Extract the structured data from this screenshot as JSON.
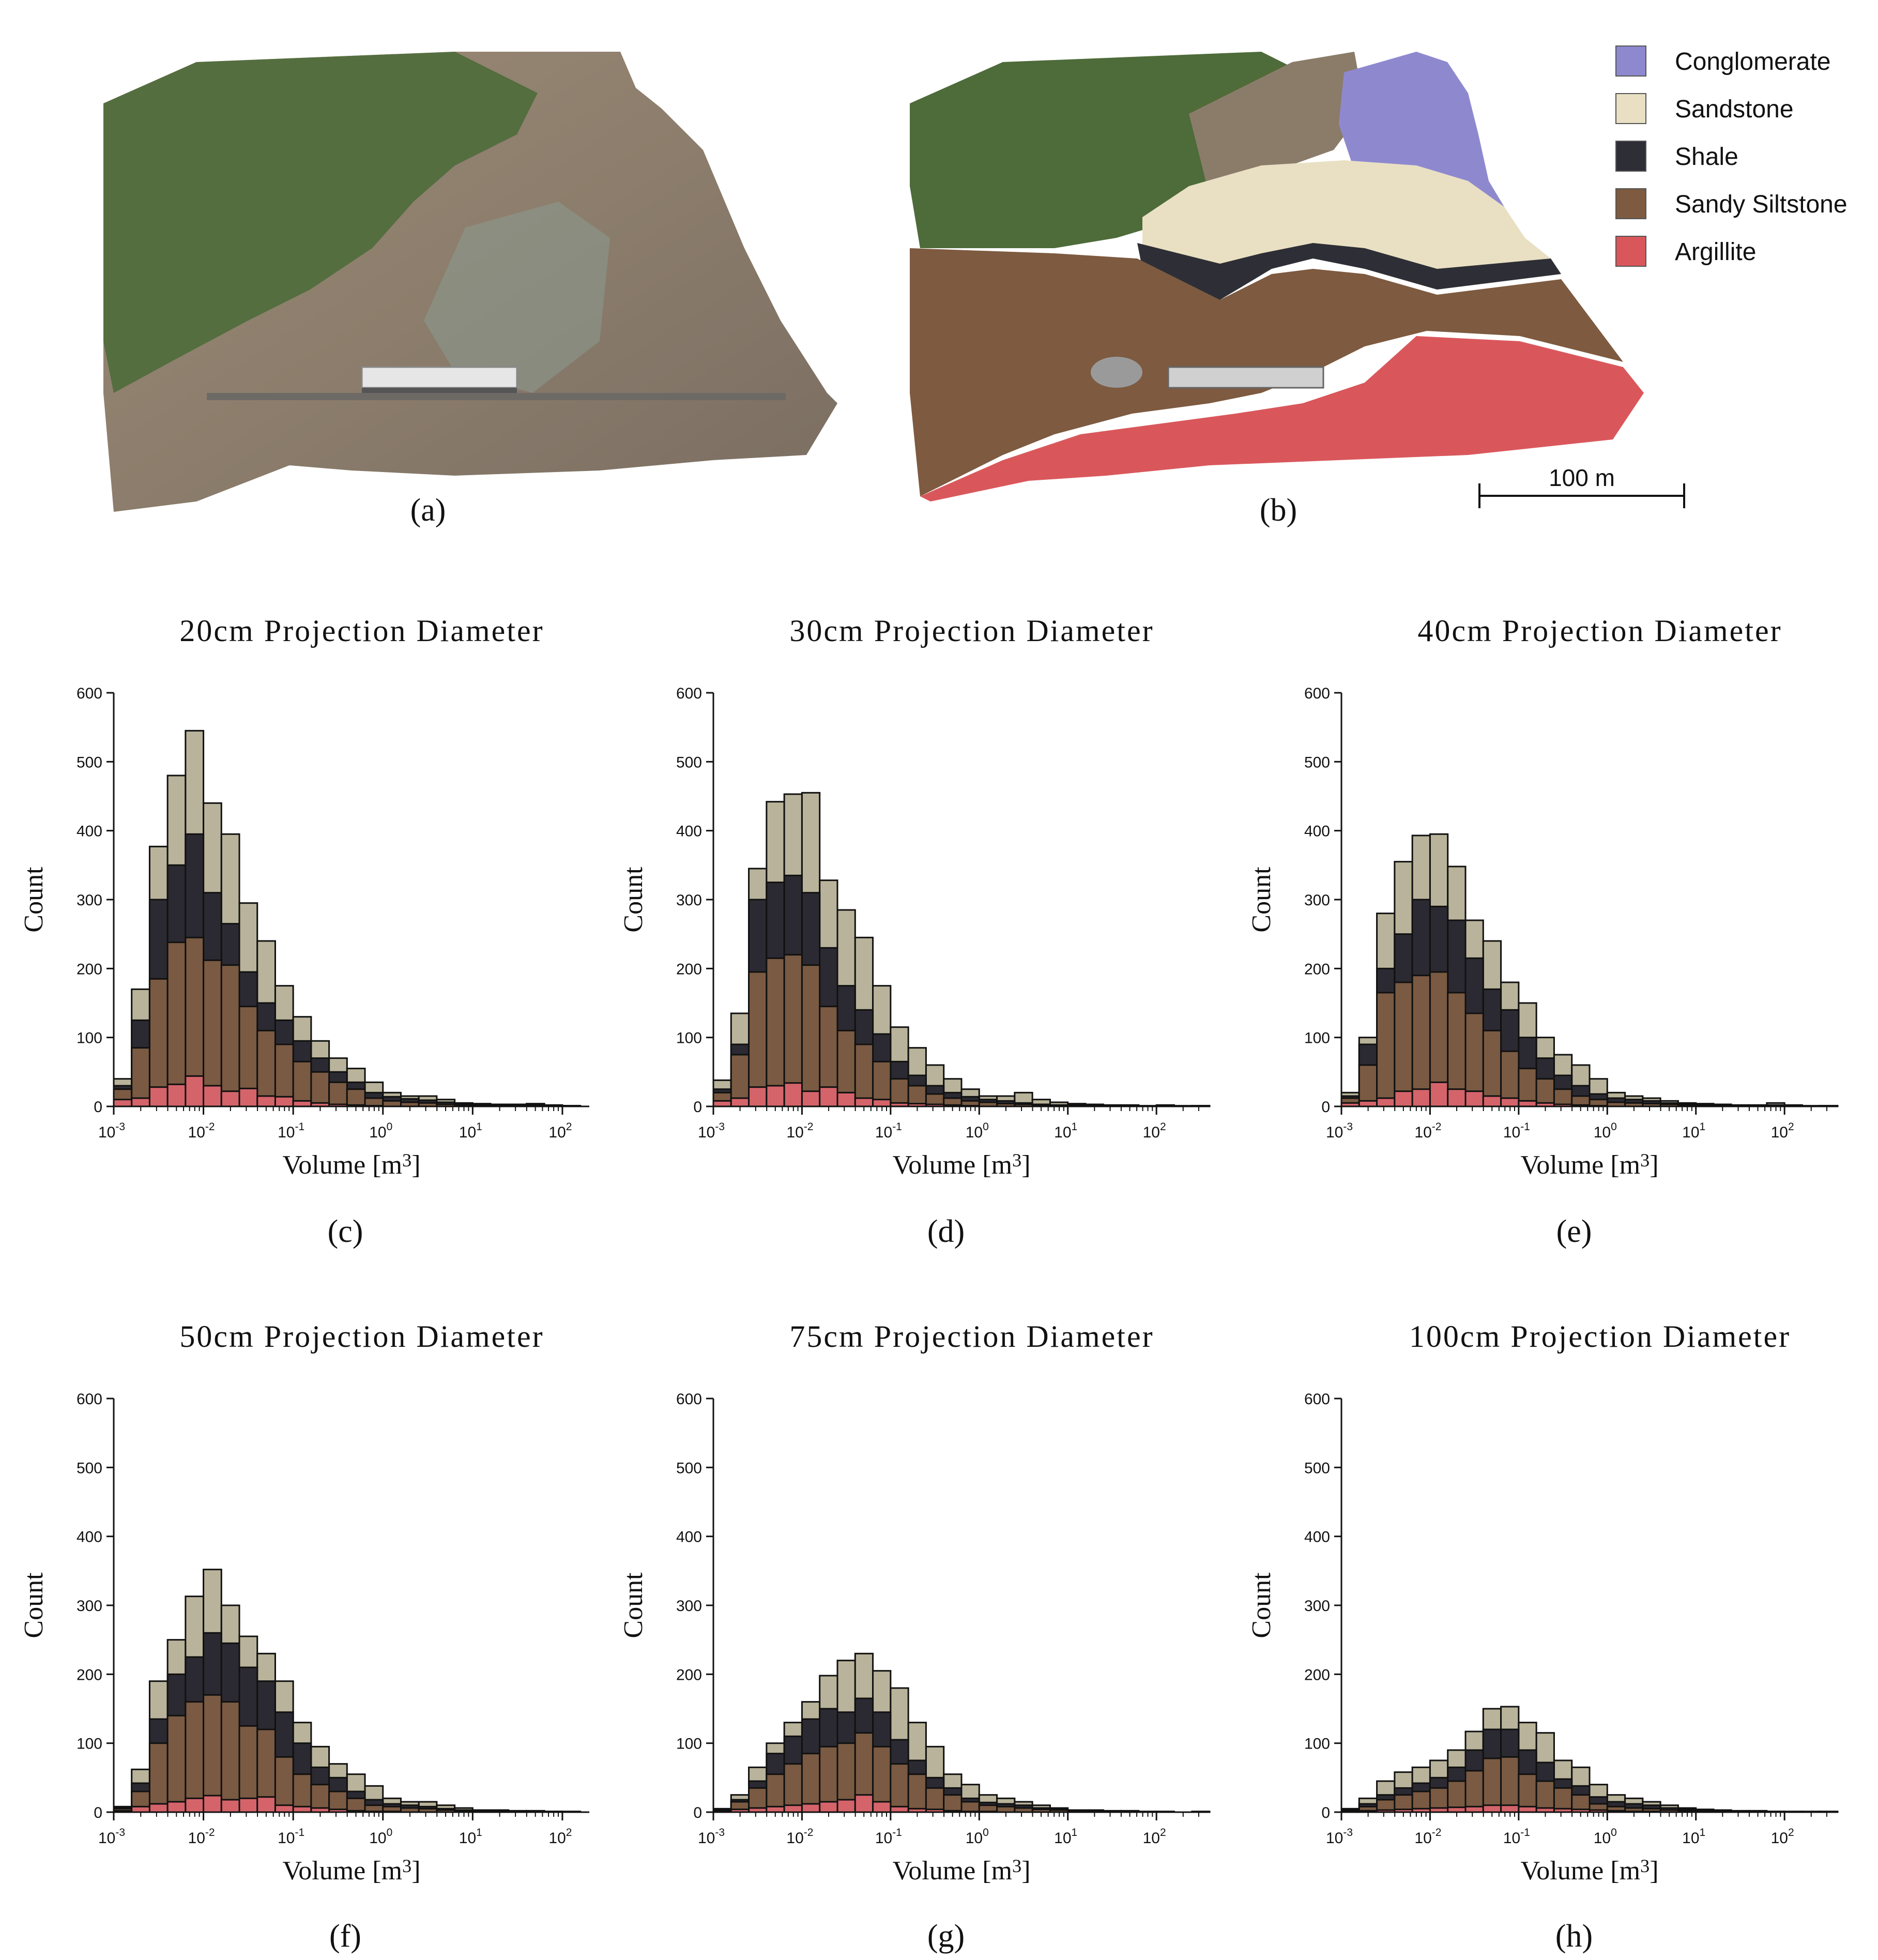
{
  "panels": {
    "a": "(a)",
    "b": "(b)",
    "c": "(c)",
    "d": "(d)",
    "e": "(e)",
    "f": "(f)",
    "g": "(g)",
    "h": "(h)"
  },
  "legend": {
    "items": [
      {
        "label": "Conglomerate",
        "color": "#8e89cf"
      },
      {
        "label": "Sandstone",
        "color": "#e9e0c3"
      },
      {
        "label": "Shale",
        "color": "#2e2e36"
      },
      {
        "label": "Sandy Siltstone",
        "color": "#7d5a40"
      },
      {
        "label": "Argillite",
        "color": "#d9575b"
      }
    ]
  },
  "scale_bar": {
    "label": "100 m"
  },
  "series_colors": {
    "Argillite": "#d4646a",
    "Sandy Siltstone": "#7a5a42",
    "Shale": "#2b2a32",
    "Sandstone": "#b8b39a",
    "Conglomerate": "#7a78c8"
  },
  "chart_data": [
    {
      "type": "bar",
      "title": "20cm  Projection  Diameter",
      "xlabel": "Volume [m3]",
      "ylabel": "Count",
      "xscale": "log",
      "xlim_exp": [
        -3,
        2.3
      ],
      "ylim": [
        0,
        600
      ],
      "yticks": [
        0,
        100,
        200,
        300,
        400,
        500,
        600
      ],
      "xticks": [
        "10-3",
        "10-2",
        "10-1",
        "100",
        "101",
        "102"
      ],
      "bin_width_decades": 0.2,
      "bin_start_exp": -3.0,
      "series": [
        {
          "name": "Argillite",
          "values": [
            10,
            12,
            28,
            32,
            44,
            30,
            22,
            26,
            15,
            14,
            8,
            5,
            3,
            2,
            1,
            0,
            0,
            0,
            0,
            0,
            0,
            0,
            0,
            0,
            0,
            0
          ]
        },
        {
          "name": "Sandy Siltstone",
          "values": [
            25,
            85,
            185,
            238,
            245,
            212,
            205,
            145,
            110,
            90,
            65,
            50,
            35,
            25,
            12,
            8,
            6,
            5,
            3,
            2,
            2,
            1,
            1,
            1,
            0,
            0
          ]
        },
        {
          "name": "Shale",
          "values": [
            30,
            125,
            300,
            350,
            395,
            310,
            265,
            195,
            150,
            125,
            95,
            70,
            50,
            35,
            20,
            14,
            11,
            9,
            6,
            4,
            3,
            2,
            2,
            2,
            1,
            1
          ]
        },
        {
          "name": "Sandstone",
          "values": [
            40,
            170,
            377,
            480,
            545,
            440,
            395,
            295,
            240,
            175,
            130,
            95,
            70,
            55,
            35,
            20,
            15,
            15,
            10,
            5,
            4,
            3,
            3,
            4,
            2,
            1
          ]
        }
      ]
    },
    {
      "type": "bar",
      "title": "30cm  Projection  Diameter",
      "xlabel": "Volume [m3]",
      "ylabel": "Count",
      "xscale": "log",
      "xlim_exp": [
        -3,
        2.6
      ],
      "ylim": [
        0,
        600
      ],
      "yticks": [
        0,
        100,
        200,
        300,
        400,
        500,
        600
      ],
      "xticks": [
        "10-3",
        "10-2",
        "10-1",
        "100",
        "101",
        "102"
      ],
      "bin_width_decades": 0.2,
      "bin_start_exp": -3.0,
      "series": [
        {
          "name": "Argillite",
          "values": [
            8,
            12,
            28,
            30,
            34,
            22,
            28,
            20,
            12,
            10,
            5,
            4,
            3,
            2,
            1,
            0,
            0,
            0,
            0,
            0,
            0,
            0,
            0,
            0,
            0,
            0,
            0,
            0
          ]
        },
        {
          "name": "Sandy Siltstone",
          "values": [
            20,
            75,
            195,
            215,
            220,
            205,
            145,
            110,
            90,
            65,
            40,
            30,
            18,
            12,
            8,
            6,
            4,
            3,
            2,
            1,
            1,
            1,
            0,
            0,
            0,
            0,
            0,
            0
          ]
        },
        {
          "name": "Shale",
          "values": [
            25,
            90,
            300,
            325,
            335,
            310,
            230,
            175,
            140,
            105,
            65,
            45,
            30,
            20,
            14,
            10,
            8,
            5,
            3,
            2,
            2,
            1,
            1,
            1,
            0,
            0,
            0,
            1
          ]
        },
        {
          "name": "Sandstone",
          "values": [
            38,
            135,
            345,
            442,
            453,
            455,
            328,
            285,
            245,
            175,
            115,
            85,
            60,
            40,
            25,
            15,
            15,
            20,
            10,
            6,
            4,
            3,
            2,
            2,
            1,
            2,
            1,
            1
          ]
        }
      ]
    },
    {
      "type": "bar",
      "title": "40cm  Projection  Diameter",
      "xlabel": "Volume [m3]",
      "ylabel": "Count",
      "xscale": "log",
      "xlim_exp": [
        -3,
        2.6
      ],
      "ylim": [
        0,
        600
      ],
      "yticks": [
        0,
        100,
        200,
        300,
        400,
        500,
        600
      ],
      "xticks": [
        "10-3",
        "10-2",
        "10-1",
        "100",
        "101",
        "102"
      ],
      "bin_width_decades": 0.2,
      "bin_start_exp": -3.0,
      "series": [
        {
          "name": "Argillite",
          "values": [
            5,
            8,
            12,
            22,
            25,
            35,
            25,
            22,
            15,
            12,
            8,
            5,
            3,
            2,
            1,
            0,
            0,
            0,
            0,
            0,
            0,
            0,
            0,
            0,
            0,
            0,
            0,
            0
          ]
        },
        {
          "name": "Sandy Siltstone",
          "values": [
            12,
            60,
            165,
            180,
            190,
            195,
            165,
            135,
            110,
            80,
            55,
            40,
            25,
            15,
            10,
            6,
            5,
            4,
            3,
            2,
            1,
            1,
            0,
            0,
            0,
            0,
            0,
            0
          ]
        },
        {
          "name": "Shale",
          "values": [
            15,
            90,
            200,
            250,
            300,
            290,
            270,
            215,
            170,
            140,
            100,
            70,
            45,
            30,
            18,
            12,
            10,
            8,
            5,
            3,
            2,
            2,
            1,
            1,
            2,
            1,
            0,
            1
          ]
        },
        {
          "name": "Sandstone",
          "values": [
            20,
            100,
            280,
            355,
            393,
            395,
            348,
            270,
            240,
            180,
            150,
            100,
            75,
            60,
            40,
            20,
            15,
            12,
            8,
            5,
            4,
            3,
            2,
            2,
            5,
            2,
            1,
            1
          ]
        }
      ]
    },
    {
      "type": "bar",
      "title": "50cm  Projection  Diameter",
      "xlabel": "Volume [m3]",
      "ylabel": "Count",
      "xscale": "log",
      "xlim_exp": [
        -3,
        2.3
      ],
      "ylim": [
        0,
        600
      ],
      "yticks": [
        0,
        100,
        200,
        300,
        400,
        500,
        600
      ],
      "xticks": [
        "10-3",
        "10-2",
        "10-1",
        "100",
        "101",
        "102"
      ],
      "bin_width_decades": 0.2,
      "bin_start_exp": -3.0,
      "series": [
        {
          "name": "Argillite",
          "values": [
            2,
            8,
            12,
            15,
            20,
            24,
            18,
            20,
            22,
            10,
            8,
            6,
            4,
            2,
            1,
            1,
            0,
            0,
            0,
            0,
            0,
            0,
            0,
            0,
            0,
            0
          ]
        },
        {
          "name": "Sandy Siltstone",
          "values": [
            5,
            30,
            100,
            140,
            160,
            170,
            160,
            125,
            120,
            80,
            55,
            40,
            30,
            20,
            10,
            8,
            6,
            5,
            3,
            2,
            1,
            1,
            0,
            0,
            0,
            0
          ]
        },
        {
          "name": "Shale",
          "values": [
            6,
            42,
            135,
            200,
            225,
            260,
            245,
            210,
            190,
            145,
            100,
            65,
            50,
            30,
            18,
            12,
            10,
            8,
            5,
            3,
            2,
            2,
            1,
            1,
            1,
            0
          ]
        },
        {
          "name": "Sandstone",
          "values": [
            8,
            62,
            190,
            250,
            313,
            352,
            300,
            255,
            230,
            190,
            130,
            95,
            70,
            55,
            38,
            20,
            15,
            15,
            10,
            6,
            3,
            3,
            2,
            2,
            1,
            1
          ]
        }
      ]
    },
    {
      "type": "bar",
      "title": "75cm  Projection  Diameter",
      "xlabel": "Volume [m3]",
      "ylabel": "Count",
      "xscale": "log",
      "xlim_exp": [
        -3,
        2.6
      ],
      "ylim": [
        0,
        600
      ],
      "yticks": [
        0,
        100,
        200,
        300,
        400,
        500,
        600
      ],
      "xticks": [
        "10-3",
        "10-2",
        "10-1",
        "100",
        "101",
        "102"
      ],
      "bin_width_decades": 0.2,
      "bin_start_exp": -3.0,
      "series": [
        {
          "name": "Argillite",
          "values": [
            2,
            4,
            6,
            8,
            10,
            12,
            15,
            18,
            25,
            15,
            8,
            5,
            4,
            2,
            1,
            1,
            0,
            0,
            0,
            0,
            0,
            0,
            0,
            0,
            0,
            0,
            0,
            0
          ]
        },
        {
          "name": "Sandy Siltstone",
          "values": [
            3,
            15,
            35,
            55,
            70,
            85,
            95,
            100,
            115,
            95,
            70,
            55,
            35,
            25,
            15,
            10,
            8,
            6,
            4,
            3,
            2,
            1,
            0,
            0,
            0,
            0,
            0,
            0
          ]
        },
        {
          "name": "Shale",
          "values": [
            4,
            18,
            45,
            85,
            110,
            135,
            150,
            145,
            165,
            145,
            105,
            75,
            50,
            35,
            20,
            14,
            12,
            10,
            6,
            4,
            2,
            2,
            1,
            1,
            0,
            0,
            0,
            0
          ]
        },
        {
          "name": "Sandstone",
          "values": [
            5,
            25,
            65,
            100,
            130,
            160,
            198,
            220,
            230,
            205,
            180,
            130,
            95,
            55,
            40,
            25,
            20,
            15,
            10,
            6,
            3,
            3,
            2,
            2,
            1,
            1,
            0,
            1
          ]
        }
      ]
    },
    {
      "type": "bar",
      "title": "100cm  Projection  Diameter",
      "xlabel": "Volume [m3]",
      "ylabel": "Count",
      "xscale": "log",
      "xlim_exp": [
        -3,
        2.6
      ],
      "ylim": [
        0,
        600
      ],
      "yticks": [
        0,
        100,
        200,
        300,
        400,
        500,
        600
      ],
      "xticks": [
        "10-3",
        "10-2",
        "10-1",
        "100",
        "101",
        "102"
      ],
      "bin_width_decades": 0.2,
      "bin_start_exp": -3.0,
      "series": [
        {
          "name": "Argillite",
          "values": [
            1,
            2,
            3,
            4,
            5,
            6,
            7,
            8,
            10,
            10,
            8,
            6,
            5,
            4,
            3,
            2,
            1,
            1,
            0,
            0,
            0,
            0,
            0,
            0,
            0,
            0,
            0,
            0
          ]
        },
        {
          "name": "Sandy Siltstone",
          "values": [
            2,
            8,
            18,
            25,
            30,
            35,
            45,
            60,
            78,
            80,
            55,
            45,
            35,
            25,
            12,
            8,
            6,
            5,
            3,
            2,
            2,
            1,
            0,
            0,
            0,
            0,
            0,
            0
          ]
        },
        {
          "name": "Shale",
          "values": [
            3,
            12,
            25,
            35,
            42,
            50,
            65,
            90,
            120,
            120,
            90,
            72,
            48,
            38,
            22,
            15,
            12,
            10,
            6,
            4,
            3,
            2,
            1,
            1,
            1,
            0,
            0,
            0
          ]
        },
        {
          "name": "Sandstone",
          "values": [
            5,
            20,
            45,
            58,
            65,
            75,
            90,
            117,
            150,
            153,
            130,
            115,
            75,
            65,
            40,
            25,
            20,
            15,
            10,
            6,
            4,
            3,
            2,
            2,
            1,
            1,
            1,
            1
          ]
        }
      ]
    }
  ]
}
